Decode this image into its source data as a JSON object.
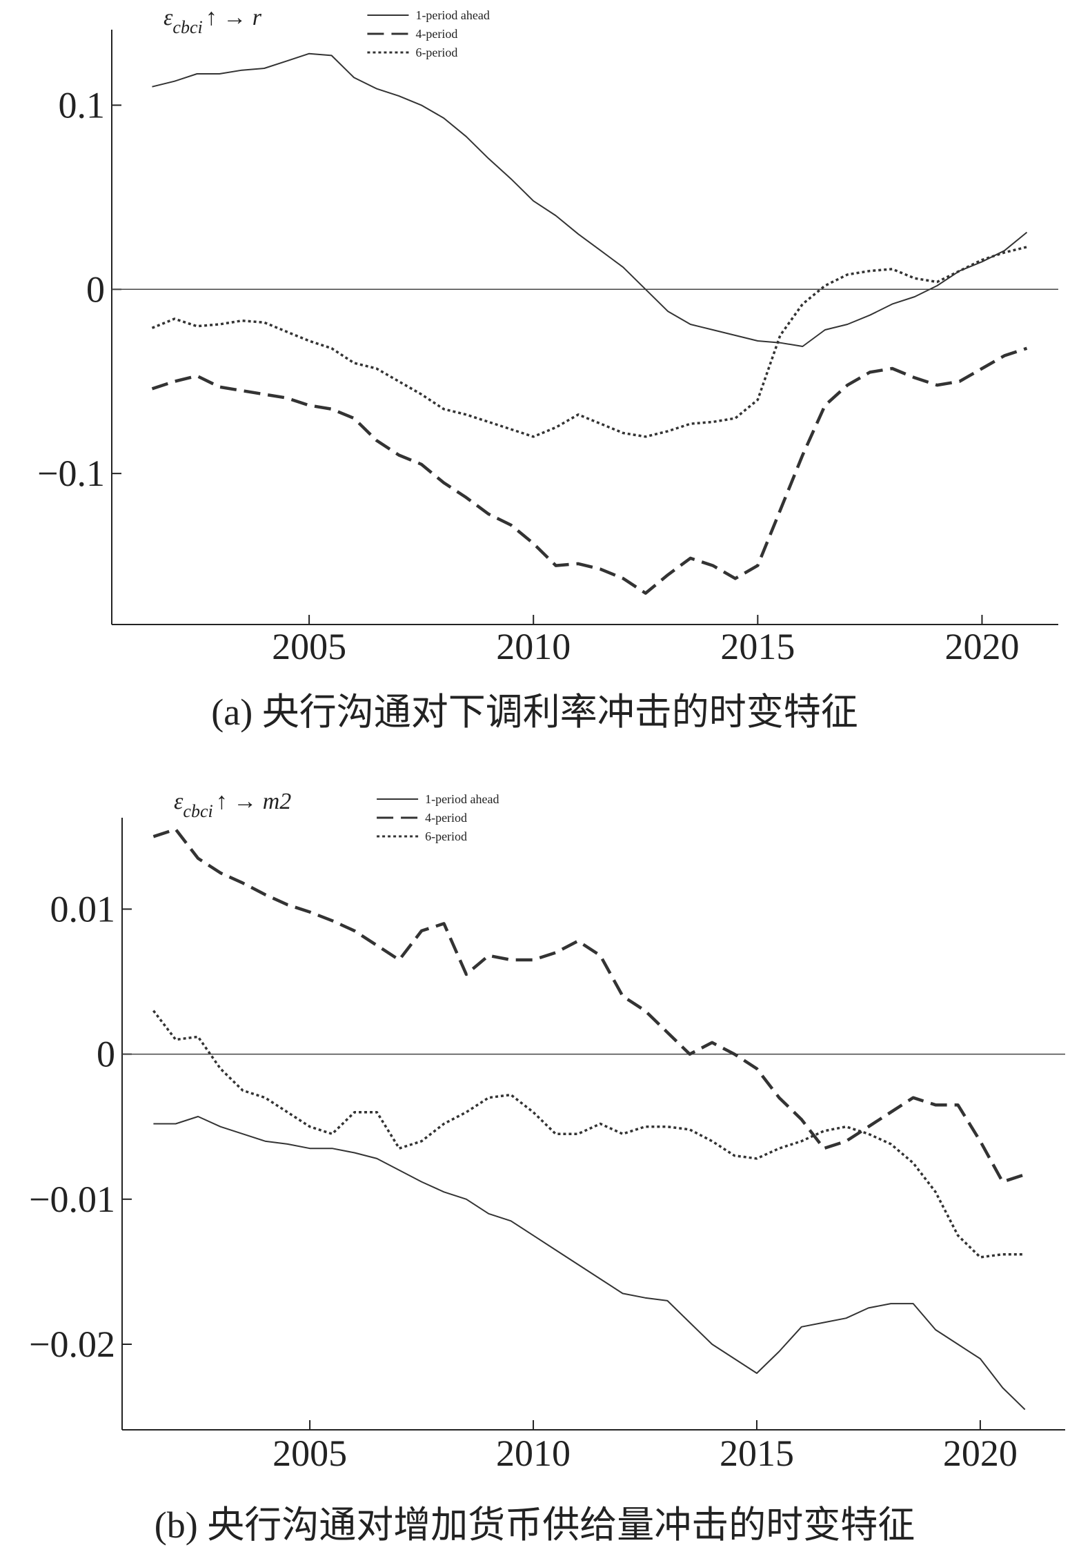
{
  "chart_data": [
    {
      "type": "line",
      "annotation": [
        "ε",
        "cbci",
        "↑ → r"
      ],
      "caption": "(a) 央行沟通对下调利率冲击的时变特征",
      "legend": "top-left",
      "hline": 0,
      "xlim": [
        2000.6,
        2021.7
      ],
      "xticks": [
        2005,
        2010,
        2015,
        2020
      ],
      "ylim": [
        -0.182,
        0.141
      ],
      "yticks": [
        {
          "value": -0.1,
          "label": "−0.1"
        },
        0,
        0.1
      ],
      "x": [
        2001.5,
        2002,
        2002.5,
        2003,
        2003.5,
        2004,
        2004.5,
        2005,
        2005.5,
        2006,
        2006.5,
        2007,
        2007.5,
        2008,
        2008.5,
        2009,
        2009.5,
        2010,
        2010.5,
        2011,
        2011.5,
        2012,
        2012.5,
        2013,
        2013.5,
        2014,
        2014.5,
        2015,
        2015.5,
        2016,
        2016.5,
        2017,
        2017.5,
        2018,
        2018.5,
        2019,
        2019.5,
        2020,
        2020.5,
        2021
      ],
      "series": [
        {
          "name": "1-period ahead",
          "color": "#333333",
          "style": "solid",
          "values": [
            0.11,
            0.113,
            0.117,
            0.117,
            0.119,
            0.12,
            0.124,
            0.128,
            0.127,
            0.115,
            0.109,
            0.105,
            0.1,
            0.093,
            0.083,
            0.071,
            0.06,
            0.048,
            0.04,
            0.03,
            0.021,
            0.012,
            0.0,
            -0.012,
            -0.019,
            -0.022,
            -0.025,
            -0.028,
            -0.029,
            -0.031,
            -0.022,
            -0.019,
            -0.014,
            -0.008,
            -0.004,
            0.002,
            0.01,
            0.015,
            0.021,
            0.031
          ]
        },
        {
          "name": "4-period",
          "color": "#333333",
          "style": "dashed",
          "values": [
            -0.054,
            -0.05,
            -0.047,
            -0.053,
            -0.055,
            -0.057,
            -0.059,
            -0.063,
            -0.065,
            -0.07,
            -0.082,
            -0.09,
            -0.095,
            -0.105,
            -0.113,
            -0.122,
            -0.128,
            -0.138,
            -0.15,
            -0.149,
            -0.152,
            -0.157,
            -0.165,
            -0.155,
            -0.146,
            -0.15,
            -0.157,
            -0.15,
            -0.12,
            -0.09,
            -0.063,
            -0.052,
            -0.045,
            -0.043,
            -0.048,
            -0.052,
            -0.05,
            -0.043,
            -0.036,
            -0.032
          ]
        },
        {
          "name": "6-period",
          "color": "#333333",
          "style": "dotted",
          "values": [
            -0.021,
            -0.016,
            -0.02,
            -0.019,
            -0.017,
            -0.018,
            -0.023,
            -0.028,
            -0.032,
            -0.04,
            -0.043,
            -0.05,
            -0.057,
            -0.065,
            -0.068,
            -0.072,
            -0.076,
            -0.08,
            -0.075,
            -0.068,
            -0.073,
            -0.078,
            -0.08,
            -0.077,
            -0.073,
            -0.072,
            -0.07,
            -0.06,
            -0.025,
            -0.008,
            0.002,
            0.008,
            0.01,
            0.011,
            0.006,
            0.004,
            0.01,
            0.016,
            0.02,
            0.023
          ]
        }
      ]
    },
    {
      "type": "line",
      "annotation": [
        "ε",
        "cbci",
        "↑ → m2"
      ],
      "caption": "(b) 央行沟通对增加货币供给量冲击的时变特征",
      "legend": "top-left",
      "hline": 0,
      "xlim": [
        2000.8,
        2021.9
      ],
      "xticks": [
        2005,
        2010,
        2015,
        2020
      ],
      "ylim": [
        -0.0259,
        0.0163
      ],
      "yticks": [
        {
          "value": -0.02,
          "label": "−0.02"
        },
        {
          "value": -0.01,
          "label": "−0.01"
        },
        0,
        0.01
      ],
      "x": [
        2001.5,
        2002,
        2002.5,
        2003,
        2003.5,
        2004,
        2004.5,
        2005,
        2005.5,
        2006,
        2006.5,
        2007,
        2007.5,
        2008,
        2008.5,
        2009,
        2009.5,
        2010,
        2010.5,
        2011,
        2011.5,
        2012,
        2012.5,
        2013,
        2013.5,
        2014,
        2014.5,
        2015,
        2015.5,
        2016,
        2016.5,
        2017,
        2017.5,
        2018,
        2018.5,
        2019,
        2019.5,
        2020,
        2020.5,
        2021
      ],
      "series": [
        {
          "name": "1-period ahead",
          "color": "#333333",
          "style": "solid",
          "values": [
            -0.0048,
            -0.0048,
            -0.0043,
            -0.005,
            -0.0055,
            -0.006,
            -0.0062,
            -0.0065,
            -0.0065,
            -0.0068,
            -0.0072,
            -0.008,
            -0.0088,
            -0.0095,
            -0.01,
            -0.011,
            -0.0115,
            -0.0125,
            -0.0135,
            -0.0145,
            -0.0155,
            -0.0165,
            -0.0168,
            -0.017,
            -0.0185,
            -0.02,
            -0.021,
            -0.022,
            -0.0205,
            -0.0188,
            -0.0185,
            -0.0182,
            -0.0175,
            -0.0172,
            -0.0172,
            -0.019,
            -0.02,
            -0.021,
            -0.023,
            -0.0245
          ]
        },
        {
          "name": "4-period",
          "color": "#333333",
          "style": "dashed",
          "values": [
            0.015,
            0.0155,
            0.0135,
            0.0125,
            0.0118,
            0.011,
            0.0103,
            0.0098,
            0.0092,
            0.0085,
            0.0075,
            0.0065,
            0.0085,
            0.009,
            0.0055,
            0.0068,
            0.0065,
            0.0065,
            0.007,
            0.0078,
            0.0068,
            0.004,
            0.003,
            0.0015,
            0.0,
            0.0008,
            0.0,
            -0.001,
            -0.003,
            -0.0045,
            -0.0065,
            -0.006,
            -0.005,
            -0.004,
            -0.003,
            -0.0035,
            -0.0035,
            -0.006,
            -0.0088,
            -0.0083
          ]
        },
        {
          "name": "6-period",
          "color": "#333333",
          "style": "dotted",
          "values": [
            0.003,
            0.001,
            0.0012,
            -0.001,
            -0.0025,
            -0.003,
            -0.004,
            -0.005,
            -0.0055,
            -0.004,
            -0.004,
            -0.0065,
            -0.006,
            -0.0048,
            -0.004,
            -0.003,
            -0.0028,
            -0.004,
            -0.0055,
            -0.0055,
            -0.0048,
            -0.0055,
            -0.005,
            -0.005,
            -0.0052,
            -0.006,
            -0.007,
            -0.0072,
            -0.0065,
            -0.006,
            -0.0053,
            -0.005,
            -0.0055,
            -0.0062,
            -0.0075,
            -0.0095,
            -0.0125,
            -0.014,
            -0.0138,
            -0.0138
          ]
        }
      ]
    }
  ]
}
